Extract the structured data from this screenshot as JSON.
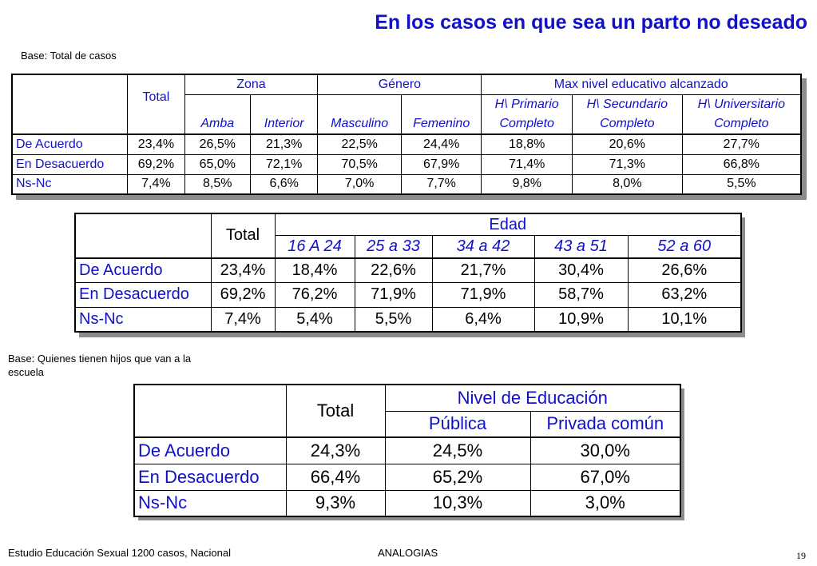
{
  "title": "En los casos en que sea un parto no deseado",
  "base1": "Base: Total de casos",
  "base2_line1": "Base: Quienes tienen hijos que van a la",
  "base2_line2": "escuela",
  "table1": {
    "total": "Total",
    "groups": [
      "Zona",
      "Género",
      "Max nivel educativo alcanzado"
    ],
    "sub_top": [
      "H\\ Primario",
      "H\\ Secundario",
      "H\\ Universitario"
    ],
    "sub_bottom": [
      "Amba",
      "Interior",
      "Masculino",
      "Femenino",
      "Completo",
      "Completo",
      "Completo"
    ],
    "rows": [
      {
        "label": "De Acuerdo",
        "values": [
          "23,4%",
          "26,5%",
          "21,3%",
          "22,5%",
          "24,4%",
          "18,8%",
          "20,6%",
          "27,7%"
        ]
      },
      {
        "label": "En Desacuerdo",
        "values": [
          "69,2%",
          "65,0%",
          "72,1%",
          "70,5%",
          "67,9%",
          "71,4%",
          "71,3%",
          "66,8%"
        ]
      },
      {
        "label": "Ns-Nc",
        "values": [
          "7,4%",
          "8,5%",
          "6,6%",
          "7,0%",
          "7,7%",
          "9,8%",
          "8,0%",
          "5,5%"
        ]
      }
    ]
  },
  "table2": {
    "total": "Total",
    "group": "Edad",
    "sub": [
      "16 A 24",
      "25 a 33",
      "34 a 42",
      "43 a 51",
      "52 a 60"
    ],
    "rows": [
      {
        "label": "De Acuerdo",
        "values": [
          "23,4%",
          "18,4%",
          "22,6%",
          "21,7%",
          "30,4%",
          "26,6%"
        ]
      },
      {
        "label": "En Desacuerdo",
        "values": [
          "69,2%",
          "76,2%",
          "71,9%",
          "71,9%",
          "58,7%",
          "63,2%"
        ]
      },
      {
        "label": "Ns-Nc",
        "values": [
          "7,4%",
          "5,4%",
          "5,5%",
          "6,4%",
          "10,9%",
          "10,1%"
        ]
      }
    ]
  },
  "table3": {
    "total": "Total",
    "group": "Nivel de Educación",
    "sub": [
      "Pública",
      "Privada común"
    ],
    "rows": [
      {
        "label": "De Acuerdo",
        "values": [
          "24,3%",
          "24,5%",
          "30,0%"
        ]
      },
      {
        "label": "En Desacuerdo",
        "values": [
          "66,4%",
          "65,2%",
          "67,0%"
        ]
      },
      {
        "label": "Ns-Nc",
        "values": [
          "9,3%",
          "10,3%",
          "3,0%"
        ]
      }
    ]
  },
  "footer": {
    "left": "Estudio Educación Sexual 1200 casos, Nacional",
    "center": "ANALOGIAS",
    "page": "19"
  },
  "colors": {
    "accent": "#1010c8",
    "shadow": "#8c8c8c"
  }
}
